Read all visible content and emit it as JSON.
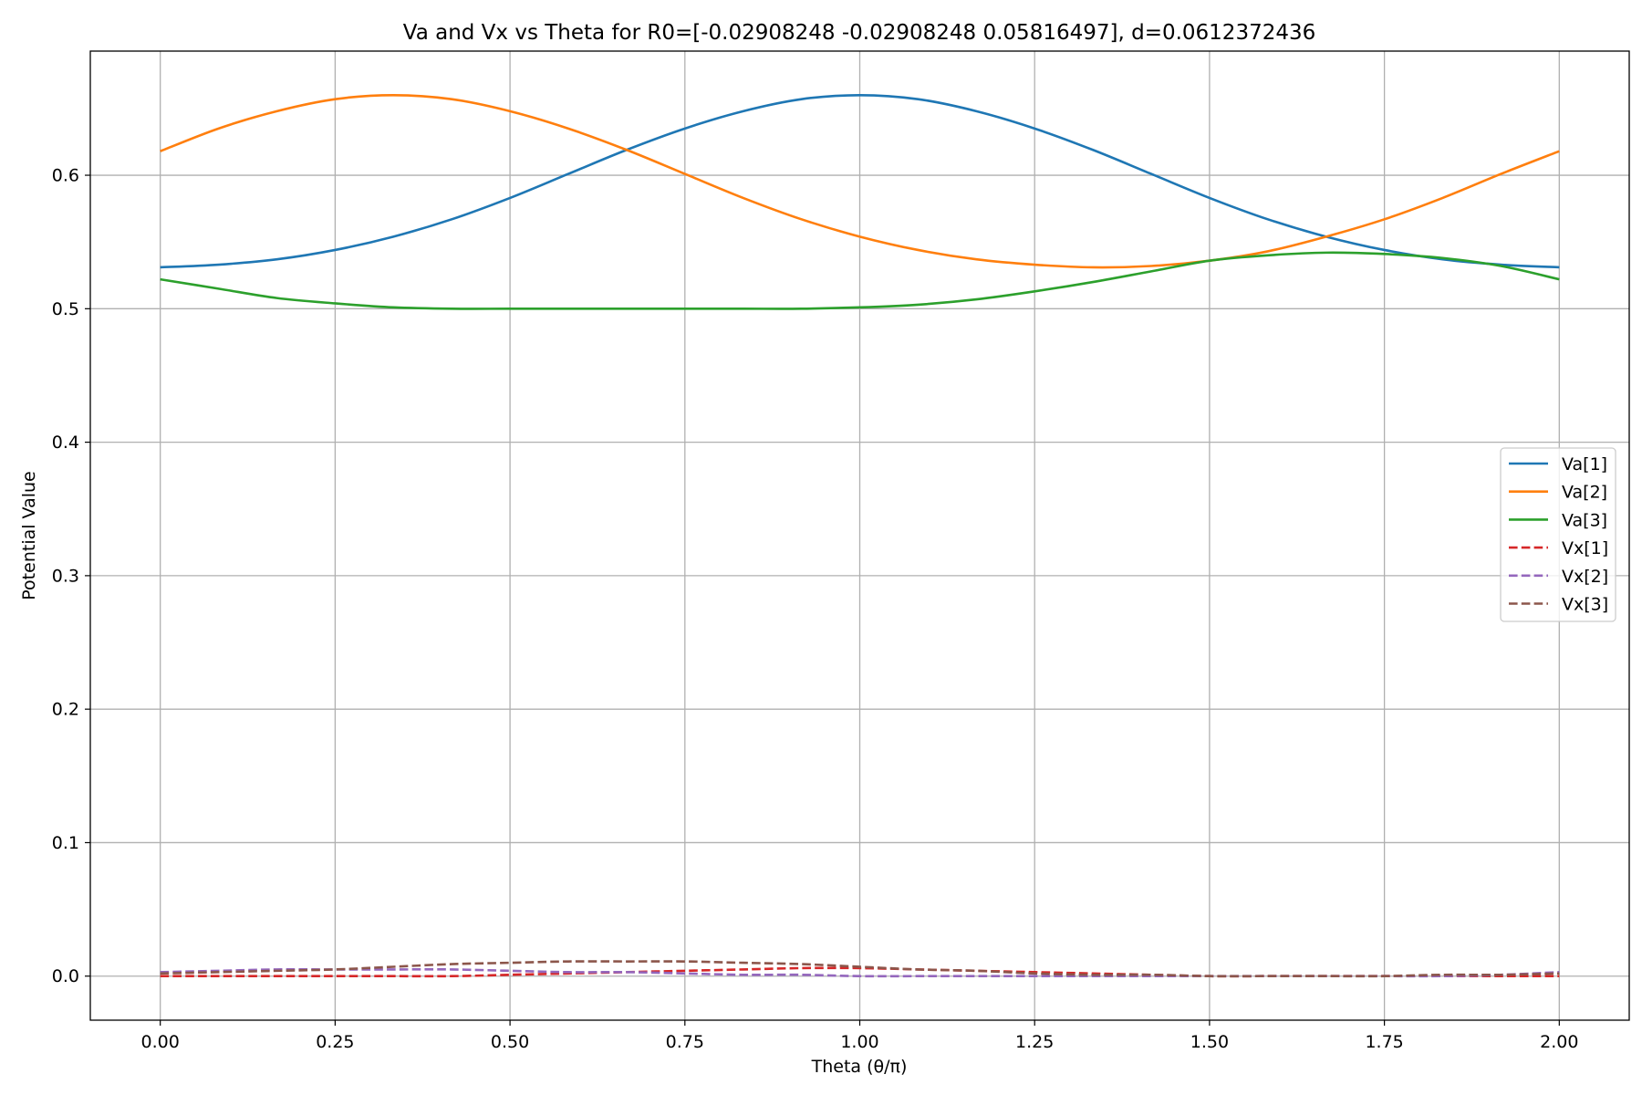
{
  "chart_data": {
    "type": "line",
    "title": "Va and Vx vs Theta for R0=[-0.02908248 -0.02908248  0.05816497], d=0.0612372436",
    "xlabel": "Theta (θ/π)",
    "ylabel": "Potential Value",
    "xlim": [
      -0.1,
      2.1
    ],
    "ylim": [
      -0.033,
      0.693
    ],
    "x_ticks": [
      "0.00",
      "0.25",
      "0.50",
      "0.75",
      "1.00",
      "1.25",
      "1.50",
      "1.75",
      "2.00"
    ],
    "y_ticks": [
      "0.0",
      "0.1",
      "0.2",
      "0.3",
      "0.4",
      "0.5",
      "0.6"
    ],
    "grid": true,
    "legend_position": "center-right",
    "x": [
      0,
      0.0833,
      0.1667,
      0.25,
      0.3333,
      0.4167,
      0.5,
      0.5833,
      0.6667,
      0.75,
      0.8333,
      0.9167,
      1.0,
      1.0833,
      1.1667,
      1.25,
      1.3333,
      1.4167,
      1.5,
      1.5833,
      1.6667,
      1.75,
      1.8333,
      1.9167,
      2.0
    ],
    "series": [
      {
        "name": "Va[1]",
        "color": "#1f77b4",
        "dash": "solid",
        "values": [
          0.531,
          0.533,
          0.537,
          0.544,
          0.554,
          0.567,
          0.583,
          0.601,
          0.619,
          0.635,
          0.648,
          0.657,
          0.66,
          0.657,
          0.648,
          0.635,
          0.619,
          0.601,
          0.583,
          0.567,
          0.554,
          0.544,
          0.537,
          0.533,
          0.531
        ]
      },
      {
        "name": "Va[2]",
        "color": "#ff7f0e",
        "dash": "solid",
        "values": [
          0.618,
          0.635,
          0.648,
          0.657,
          0.66,
          0.657,
          0.648,
          0.635,
          0.619,
          0.601,
          0.583,
          0.567,
          0.554,
          0.544,
          0.537,
          0.533,
          0.531,
          0.532,
          0.536,
          0.543,
          0.554,
          0.567,
          0.583,
          0.601,
          0.618
        ]
      },
      {
        "name": "Va[3]",
        "color": "#2ca02c",
        "dash": "solid",
        "values": [
          0.522,
          0.515,
          0.508,
          0.504,
          0.501,
          0.5,
          0.5,
          0.5,
          0.5,
          0.5,
          0.5,
          0.5,
          0.501,
          0.503,
          0.507,
          0.513,
          0.52,
          0.528,
          0.536,
          0.54,
          0.542,
          0.541,
          0.538,
          0.532,
          0.522
        ]
      },
      {
        "name": "Vx[1]",
        "color": "#d62728",
        "dash": "dashed",
        "values": [
          0.0,
          0.0,
          0.0,
          0.0,
          0.0,
          0.0,
          0.001,
          0.002,
          0.003,
          0.004,
          0.005,
          0.006,
          0.006,
          0.005,
          0.004,
          0.003,
          0.002,
          0.001,
          0.0,
          0.0,
          0.0,
          0.0,
          0.0,
          0.0,
          0.0
        ]
      },
      {
        "name": "Vx[2]",
        "color": "#9467bd",
        "dash": "dashed",
        "values": [
          0.003,
          0.004,
          0.005,
          0.005,
          0.005,
          0.005,
          0.004,
          0.003,
          0.003,
          0.002,
          0.001,
          0.001,
          0.0,
          0.0,
          0.0,
          0.0,
          0.0,
          0.0,
          0.0,
          0.0,
          0.0,
          0.0,
          0.0,
          0.001,
          0.003
        ]
      },
      {
        "name": "Vx[3]",
        "color": "#8c564b",
        "dash": "dashed",
        "values": [
          0.002,
          0.003,
          0.004,
          0.005,
          0.007,
          0.009,
          0.01,
          0.011,
          0.011,
          0.011,
          0.01,
          0.009,
          0.007,
          0.005,
          0.004,
          0.002,
          0.001,
          0.001,
          0.0,
          0.0,
          0.0,
          0.0,
          0.001,
          0.001,
          0.002
        ]
      }
    ]
  }
}
